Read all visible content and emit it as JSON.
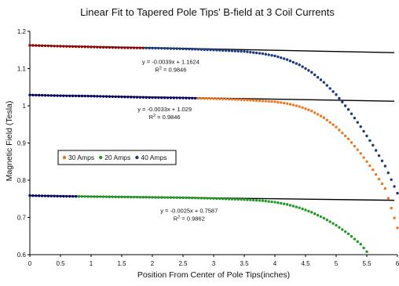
{
  "chart_data": {
    "type": "scatter",
    "title": "Linear Fit to Tapered Pole Tips' B-field at 3 Coil Currents",
    "xlabel": "Position From Center of Pole Tips(inches)",
    "ylabel": "Magnetic Field (Tesla)",
    "xlim": [
      0,
      6
    ],
    "ylim": [
      0.6,
      1.2
    ],
    "x_ticks": [
      "0",
      "0.5",
      "1",
      "1.5",
      "2",
      "2.5",
      "3",
      "3.5",
      "4",
      "4.5",
      "5",
      "5.5",
      "6"
    ],
    "y_ticks": [
      "0.6",
      "0.7",
      "0.8",
      "0.9",
      "1",
      "1.1",
      "1.2"
    ],
    "grid": false,
    "legend_position": "left-middle",
    "legend": [
      "30 Amps",
      "20 Amps",
      "40 Amps"
    ],
    "series": [
      {
        "name": "30 Amps",
        "color": "#ee7722",
        "overlay_color": "#000066",
        "overlay_until_x": 2.7,
        "fit": {
          "slope": -0.0033,
          "intercept": 1.029
        },
        "points": [
          [
            0,
            1.029
          ],
          [
            0.5,
            1.027
          ],
          [
            1.0,
            1.026
          ],
          [
            1.5,
            1.024
          ],
          [
            2.0,
            1.022
          ],
          [
            2.5,
            1.021
          ],
          [
            3.0,
            1.019
          ],
          [
            3.5,
            1.016
          ],
          [
            4.0,
            1.011
          ],
          [
            4.2,
            1.006
          ],
          [
            4.4,
            0.998
          ],
          [
            4.6,
            0.986
          ],
          [
            4.8,
            0.968
          ],
          [
            5.0,
            0.943
          ],
          [
            5.2,
            0.911
          ],
          [
            5.4,
            0.872
          ],
          [
            5.6,
            0.828
          ],
          [
            5.8,
            0.778
          ],
          [
            6.0,
            0.672
          ]
        ]
      },
      {
        "name": "20 Amps",
        "color": "#229922",
        "overlay_color": "#000066",
        "overlay_until_x": 0.8,
        "fit": {
          "slope": -0.0025,
          "intercept": 0.7587
        },
        "points": [
          [
            0,
            0.7587
          ],
          [
            0.5,
            0.757
          ],
          [
            1.0,
            0.756
          ],
          [
            1.5,
            0.755
          ],
          [
            2.0,
            0.754
          ],
          [
            2.5,
            0.753
          ],
          [
            3.0,
            0.751
          ],
          [
            3.5,
            0.748
          ],
          [
            3.8,
            0.745
          ],
          [
            4.0,
            0.741
          ],
          [
            4.2,
            0.735
          ],
          [
            4.4,
            0.726
          ],
          [
            4.6,
            0.714
          ],
          [
            4.8,
            0.698
          ],
          [
            5.0,
            0.679
          ],
          [
            5.2,
            0.656
          ],
          [
            5.4,
            0.628
          ],
          [
            5.5,
            0.608
          ]
        ]
      },
      {
        "name": "40 Amps",
        "color": "#1a3a80",
        "overlay_color": "#990000",
        "overlay_until_x": 1.9,
        "fit": {
          "slope": -0.0039,
          "intercept": 1.1624
        },
        "points": [
          [
            0,
            1.1624
          ],
          [
            0.5,
            1.16
          ],
          [
            1.0,
            1.158
          ],
          [
            1.5,
            1.156
          ],
          [
            2.0,
            1.155
          ],
          [
            2.5,
            1.153
          ],
          [
            3.0,
            1.15
          ],
          [
            3.5,
            1.146
          ],
          [
            3.8,
            1.14
          ],
          [
            4.0,
            1.134
          ],
          [
            4.2,
            1.124
          ],
          [
            4.4,
            1.11
          ],
          [
            4.6,
            1.09
          ],
          [
            4.8,
            1.063
          ],
          [
            5.0,
            1.03
          ],
          [
            5.2,
            0.99
          ],
          [
            5.4,
            0.944
          ],
          [
            5.6,
            0.894
          ],
          [
            5.8,
            0.838
          ],
          [
            6.0,
            0.765
          ]
        ]
      }
    ],
    "annotations": [
      {
        "lines": [
          "y = -0.0039x + 1.1624",
          "R2 = 0.9846"
        ],
        "data_x": 2.3,
        "data_y": 1.113
      },
      {
        "lines": [
          "y = -0.0033x + 1.029",
          "R2 = 0.9846"
        ],
        "data_x": 2.2,
        "data_y": 0.985
      },
      {
        "lines": [
          "y = -0.0025x + 0.7587",
          "R2 = 0.9862"
        ],
        "data_x": 2.6,
        "data_y": 0.713
      }
    ]
  }
}
